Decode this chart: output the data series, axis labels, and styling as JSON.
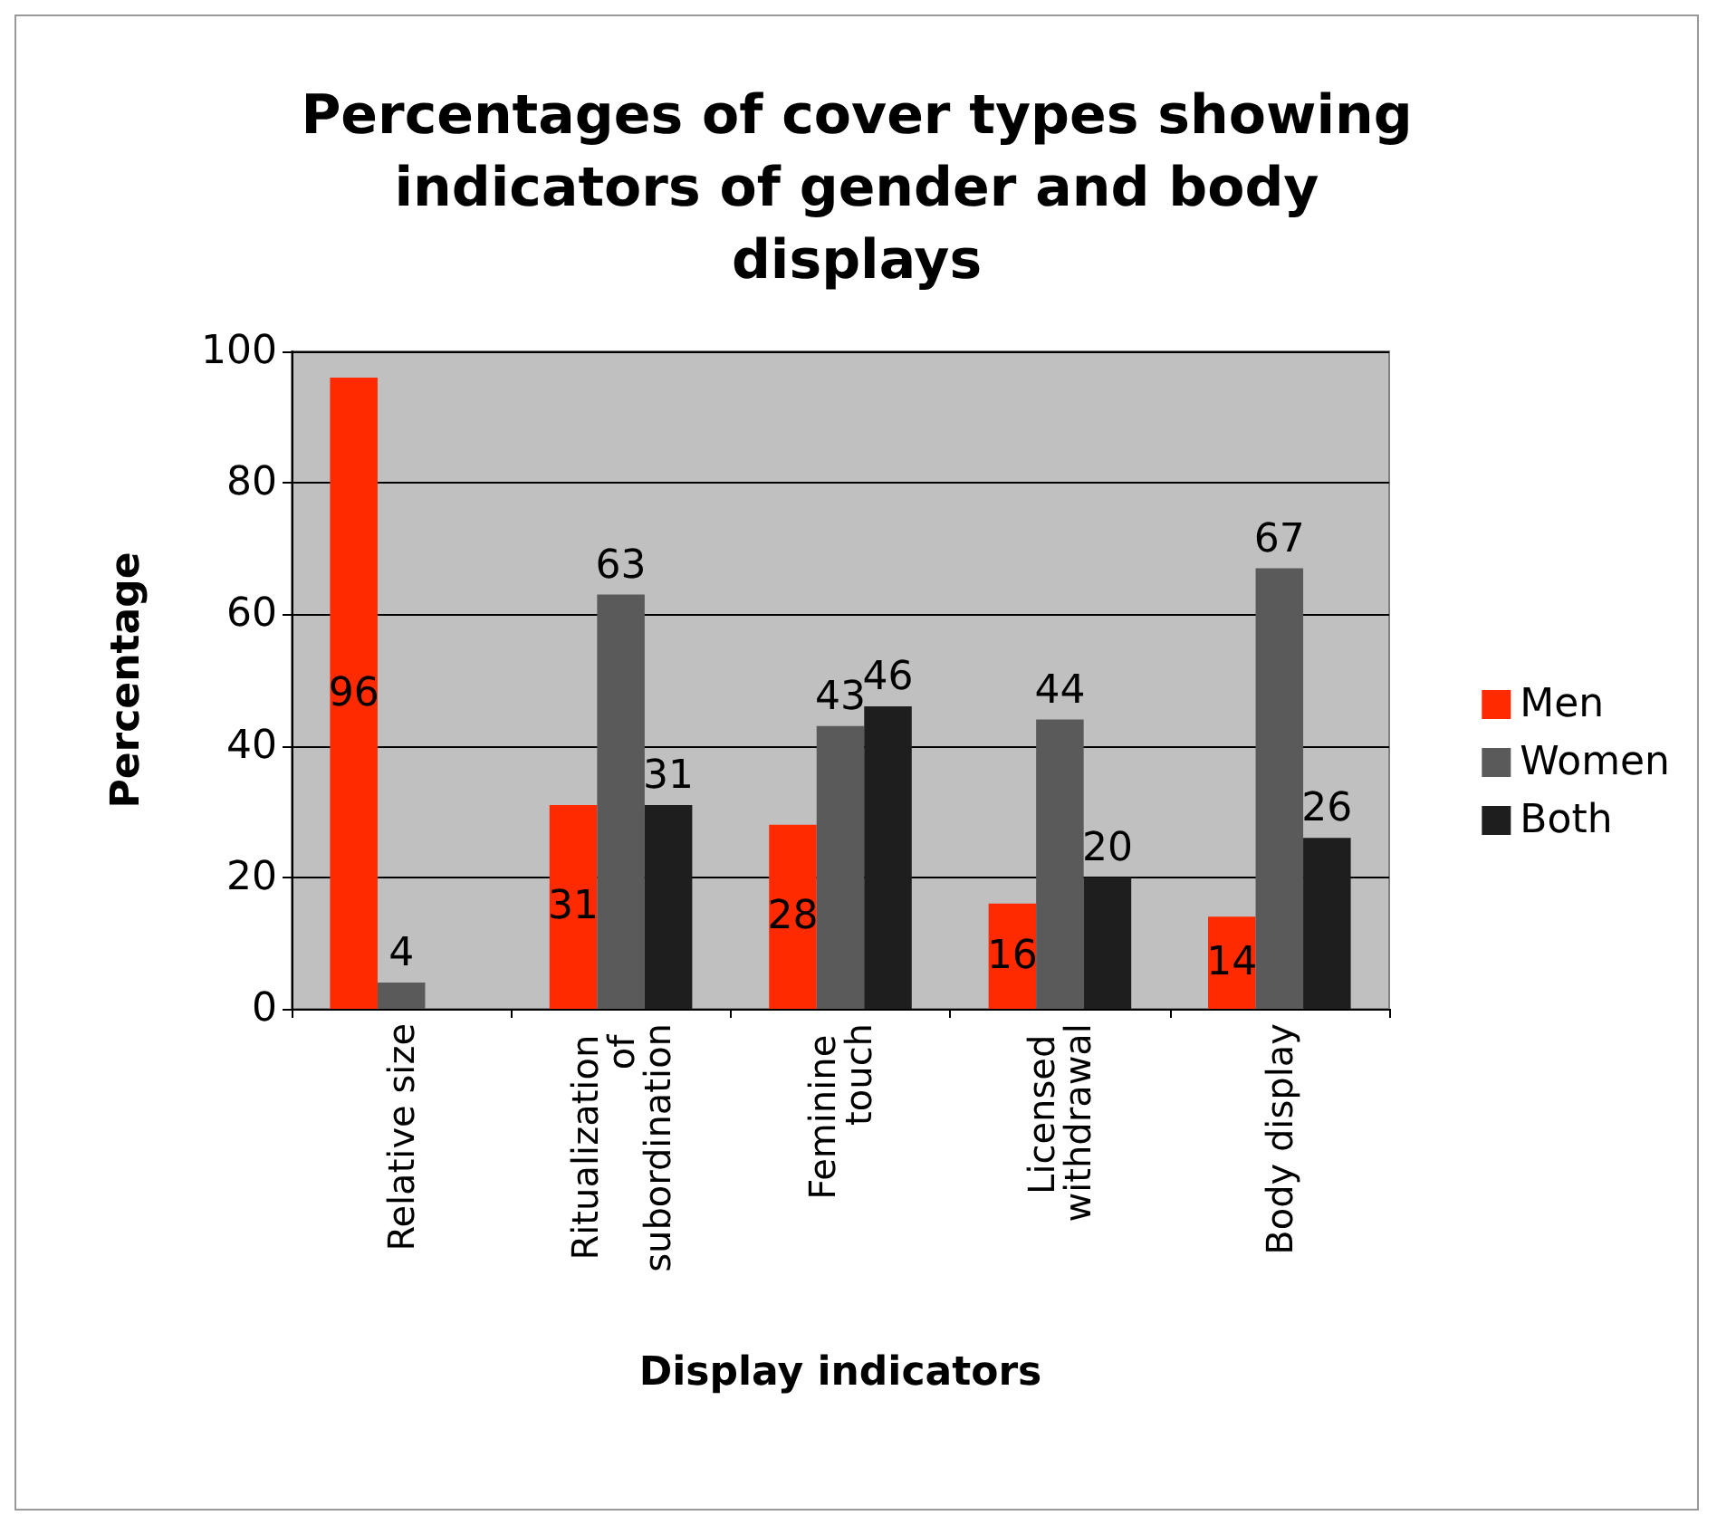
{
  "chart_data": {
    "type": "bar",
    "title": "Percentages of cover types showing indicators of gender and body displays",
    "xlabel": "Display indicators",
    "ylabel": "Percentage",
    "categories": [
      "Relative size",
      "Ritualization of subordination",
      "Feminine touch",
      "Licensed withdrawal",
      "Body display"
    ],
    "series": [
      {
        "name": "Men",
        "color": "#ff2a00",
        "values": [
          96,
          31,
          28,
          16,
          14
        ]
      },
      {
        "name": "Women",
        "color": "#5a5a5a",
        "values": [
          4,
          63,
          43,
          44,
          67
        ]
      },
      {
        "name": "Both",
        "color": "#1e1e1e",
        "values": [
          null,
          31,
          46,
          20,
          26
        ]
      }
    ],
    "ylim": [
      0,
      100
    ],
    "yticks": [
      0,
      20,
      40,
      60,
      80,
      100
    ],
    "grid": "y",
    "legend": "right",
    "data_labels": true
  }
}
